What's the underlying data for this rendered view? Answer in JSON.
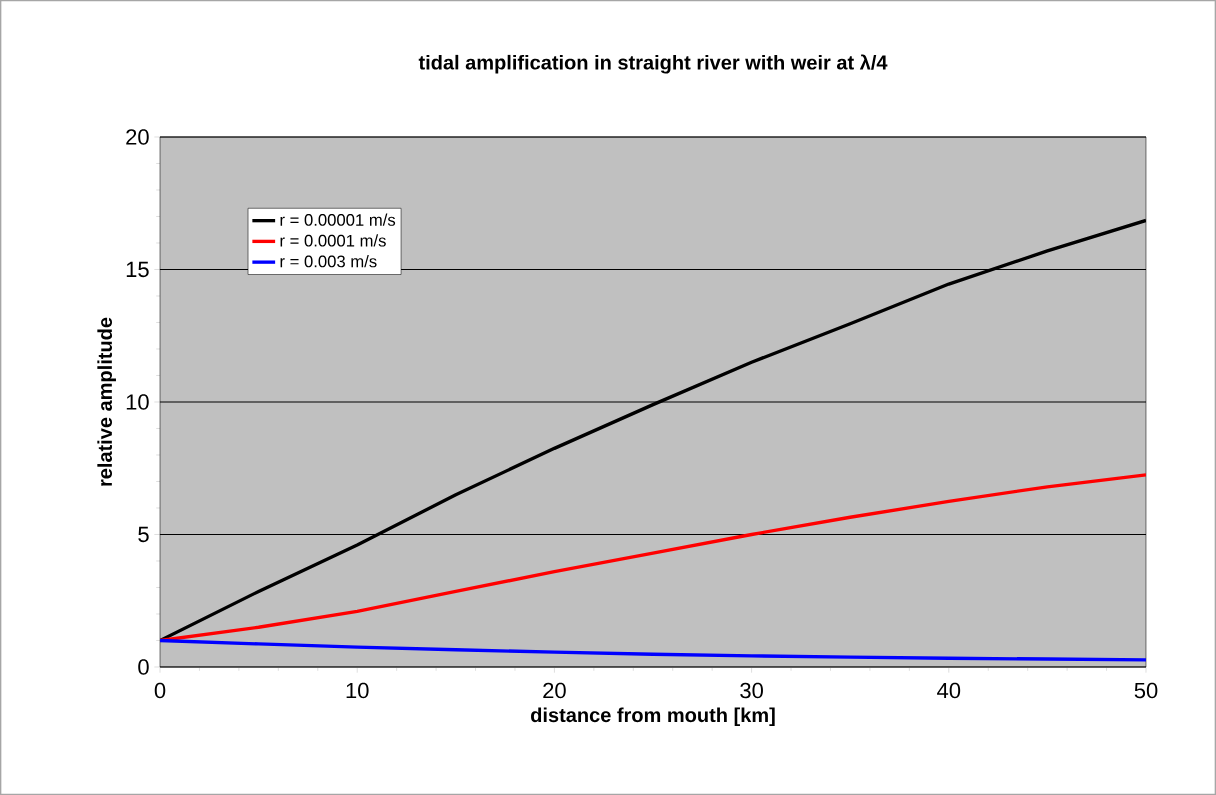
{
  "chart_data": {
    "type": "line",
    "title": "tidal amplification in straight river with weir at λ/4",
    "xlabel": "distance from mouth [km]",
    "ylabel": "relative amplitude",
    "x": [
      0,
      5,
      10,
      15,
      20,
      25,
      30,
      35,
      40,
      45,
      50
    ],
    "series": [
      {
        "name": "r = 0.00001 m/s",
        "color": "#000000",
        "values": [
          1,
          2.85,
          4.6,
          6.5,
          8.25,
          9.9,
          11.5,
          12.95,
          14.45,
          15.7,
          16.85
        ]
      },
      {
        "name": "r = 0.0001 m/s",
        "color": "#ff0000",
        "values": [
          1,
          1.5,
          2.1,
          2.85,
          3.6,
          4.3,
          5.0,
          5.65,
          6.25,
          6.8,
          7.25
        ]
      },
      {
        "name": "r = 0.003 m/s",
        "color": "#0000ff",
        "values": [
          1,
          0.87,
          0.75,
          0.65,
          0.56,
          0.48,
          0.42,
          0.37,
          0.33,
          0.3,
          0.27
        ]
      }
    ],
    "xlim": [
      0,
      50
    ],
    "ylim": [
      0,
      20
    ],
    "xticks": [
      0,
      10,
      20,
      30,
      40,
      50
    ],
    "yticks": [
      0,
      5,
      10,
      15,
      20
    ],
    "grid": "y",
    "legend": "top left",
    "marker": "none",
    "line_style": "solid"
  }
}
